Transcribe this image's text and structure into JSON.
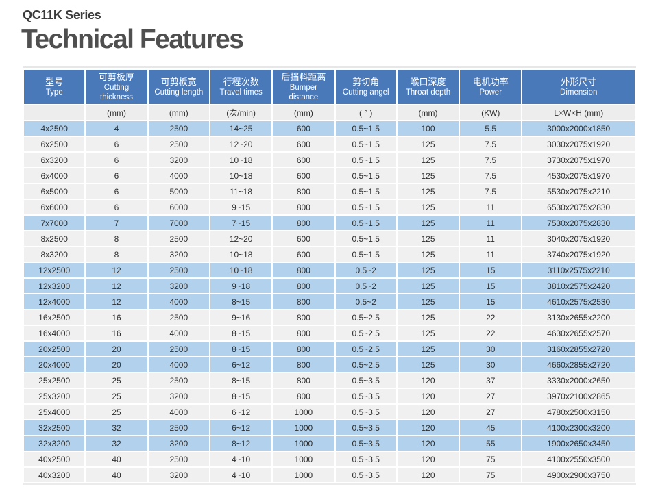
{
  "page": {
    "series": "QC11K Series",
    "title": "Technical Features"
  },
  "colors": {
    "header_bg": "#4a79ba",
    "header_text": "#ffffff",
    "highlight_row": "#b1d1ec",
    "row_bg": "#f0f0f0",
    "unit_row_bg": "#ededed",
    "cell_text": "#2e2e2e"
  },
  "table": {
    "columns": [
      {
        "zh": "型号",
        "en": "Type"
      },
      {
        "zh": "可剪板厚",
        "en": "Cutting thickness"
      },
      {
        "zh": "可剪板宽",
        "en": "Cutting length"
      },
      {
        "zh": "行程次数",
        "en": "Travel times"
      },
      {
        "zh": "后挡料距离",
        "en": "Bumper distance"
      },
      {
        "zh": "剪切角",
        "en": "Cutting angel"
      },
      {
        "zh": "喉口深度",
        "en": "Throat depth"
      },
      {
        "zh": "电机功率",
        "en": "Power"
      },
      {
        "zh": "外形尺寸",
        "en": "Dimension"
      }
    ],
    "units": [
      "",
      "(mm)",
      "(mm)",
      "(次/min)",
      "(mm)",
      "( ° )",
      "(mm)",
      "(KW)",
      "L×W×H (mm)"
    ],
    "rows": [
      {
        "highlight": true,
        "cells": [
          "4x2500",
          "4",
          "2500",
          "14~25",
          "600",
          "0.5~1.5",
          "100",
          "5.5",
          "3000x2000x1850"
        ]
      },
      {
        "highlight": false,
        "cells": [
          "6x2500",
          "6",
          "2500",
          "12~20",
          "600",
          "0.5~1.5",
          "125",
          "7.5",
          "3030x2075x1920"
        ]
      },
      {
        "highlight": false,
        "cells": [
          "6x3200",
          "6",
          "3200",
          "10~18",
          "600",
          "0.5~1.5",
          "125",
          "7.5",
          "3730x2075x1970"
        ]
      },
      {
        "highlight": false,
        "cells": [
          "6x4000",
          "6",
          "4000",
          "10~18",
          "600",
          "0.5~1.5",
          "125",
          "7.5",
          "4530x2075x1970"
        ]
      },
      {
        "highlight": false,
        "cells": [
          "6x5000",
          "6",
          "5000",
          "11~18",
          "800",
          "0.5~1.5",
          "125",
          "7.5",
          "5530x2075x2210"
        ]
      },
      {
        "highlight": false,
        "cells": [
          "6x6000",
          "6",
          "6000",
          "9~15",
          "800",
          "0.5~1.5",
          "125",
          "11",
          "6530x2075x2830"
        ]
      },
      {
        "highlight": true,
        "cells": [
          "7x7000",
          "7",
          "7000",
          "7~15",
          "800",
          "0.5~1.5",
          "125",
          "11",
          "7530x2075x2830"
        ]
      },
      {
        "highlight": false,
        "cells": [
          "8x2500",
          "8",
          "2500",
          "12~20",
          "600",
          "0.5~1.5",
          "125",
          "11",
          "3040x2075x1920"
        ]
      },
      {
        "highlight": false,
        "cells": [
          "8x3200",
          "8",
          "3200",
          "10~18",
          "600",
          "0.5~1.5",
          "125",
          "11",
          "3740x2075x1920"
        ]
      },
      {
        "highlight": true,
        "cells": [
          "12x2500",
          "12",
          "2500",
          "10~18",
          "800",
          "0.5~2",
          "125",
          "15",
          "3110x2575x2210"
        ]
      },
      {
        "highlight": true,
        "cells": [
          "12x3200",
          "12",
          "3200",
          "9~18",
          "800",
          "0.5~2",
          "125",
          "15",
          "3810x2575x2420"
        ]
      },
      {
        "highlight": true,
        "cells": [
          "12x4000",
          "12",
          "4000",
          "8~15",
          "800",
          "0.5~2",
          "125",
          "15",
          "4610x2575x2530"
        ]
      },
      {
        "highlight": false,
        "cells": [
          "16x2500",
          "16",
          "2500",
          "9~16",
          "800",
          "0.5~2.5",
          "125",
          "22",
          "3130x2655x2200"
        ]
      },
      {
        "highlight": false,
        "cells": [
          "16x4000",
          "16",
          "4000",
          "8~15",
          "800",
          "0.5~2.5",
          "125",
          "22",
          "4630x2655x2570"
        ]
      },
      {
        "highlight": true,
        "cells": [
          "20x2500",
          "20",
          "2500",
          "8~15",
          "800",
          "0.5~2.5",
          "125",
          "30",
          "3160x2855x2720"
        ]
      },
      {
        "highlight": true,
        "cells": [
          "20x4000",
          "20",
          "4000",
          "6~12",
          "800",
          "0.5~2.5",
          "125",
          "30",
          "4660x2855x2720"
        ]
      },
      {
        "highlight": false,
        "cells": [
          "25x2500",
          "25",
          "2500",
          "8~15",
          "800",
          "0.5~3.5",
          "120",
          "37",
          "3330x2000x2650"
        ]
      },
      {
        "highlight": false,
        "cells": [
          "25x3200",
          "25",
          "3200",
          "8~15",
          "800",
          "0.5~3.5",
          "120",
          "27",
          "3970x2100x2865"
        ]
      },
      {
        "highlight": false,
        "cells": [
          "25x4000",
          "25",
          "4000",
          "6~12",
          "1000",
          "0.5~3.5",
          "120",
          "27",
          "4780x2500x3150"
        ]
      },
      {
        "highlight": true,
        "cells": [
          "32x2500",
          "32",
          "2500",
          "6~12",
          "1000",
          "0.5~3.5",
          "120",
          "45",
          "4100x2300x3200"
        ]
      },
      {
        "highlight": true,
        "cells": [
          "32x3200",
          "32",
          "3200",
          "8~12",
          "1000",
          "0.5~3.5",
          "120",
          "55",
          "1900x2650x3450"
        ]
      },
      {
        "highlight": false,
        "cells": [
          "40x2500",
          "40",
          "2500",
          "4~10",
          "1000",
          "0.5~3.5",
          "120",
          "75",
          "4100x2550x3500"
        ]
      },
      {
        "highlight": false,
        "cells": [
          "40x3200",
          "40",
          "3200",
          "4~10",
          "1000",
          "0.5~3.5",
          "120",
          "75",
          "4900x2900x3750"
        ]
      }
    ]
  }
}
